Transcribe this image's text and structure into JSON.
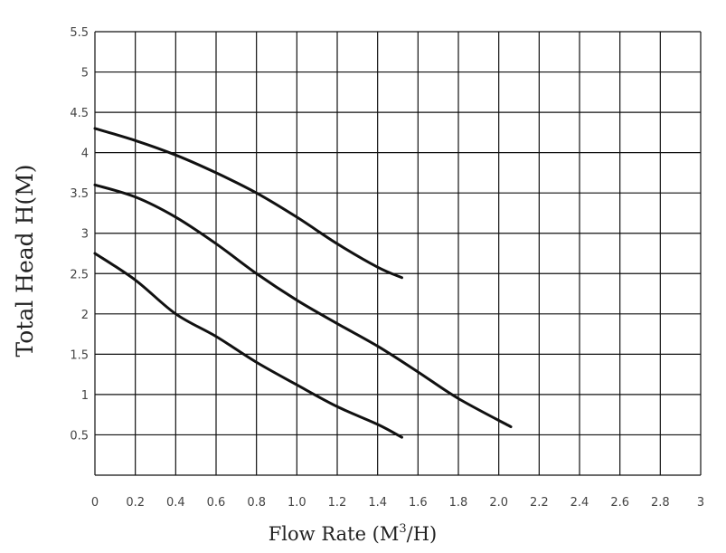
{
  "chart_data": {
    "type": "line",
    "xlabel": "Flow Rate (M",
    "xlabel_sup": "3",
    "xlabel_end": "/H)",
    "ylabel": "Total Head H(M)",
    "xlim": [
      0,
      3
    ],
    "ylim": [
      0,
      5.5
    ],
    "x_ticks": [
      0,
      0.2,
      0.4,
      0.6,
      0.8,
      1.0,
      1.2,
      1.4,
      1.6,
      1.8,
      2.0,
      2.2,
      2.4,
      2.6,
      2.8,
      3
    ],
    "x_tick_labels": [
      "0",
      "0.2",
      "0.4",
      "0.6",
      "0.8",
      "1.0",
      "1.2",
      "1.4",
      "1.6",
      "1.8",
      "2.0",
      "2.2",
      "2.4",
      "2.6",
      "2.8",
      "3"
    ],
    "y_ticks": [
      0.5,
      1,
      1.5,
      2,
      2.5,
      3,
      3.5,
      4,
      4.5,
      5,
      5.5
    ],
    "y_tick_labels": [
      "0.5",
      "1",
      "1.5",
      "2",
      "2.5",
      "3",
      "3.5",
      "4",
      "4.5",
      "5",
      "5.5"
    ],
    "grid": true,
    "legend": false,
    "series": [
      {
        "x": [
          0,
          0.2,
          0.4,
          0.6,
          0.8,
          1.0,
          1.2,
          1.4,
          1.52
        ],
        "y": [
          4.3,
          4.15,
          3.97,
          3.75,
          3.5,
          3.2,
          2.87,
          2.58,
          2.45
        ]
      },
      {
        "x": [
          0,
          0.2,
          0.4,
          0.6,
          0.8,
          1.0,
          1.2,
          1.4,
          1.6,
          1.8,
          2.06
        ],
        "y": [
          3.6,
          3.45,
          3.2,
          2.87,
          2.5,
          2.17,
          1.88,
          1.6,
          1.28,
          0.95,
          0.6
        ]
      },
      {
        "x": [
          0,
          0.2,
          0.4,
          0.6,
          0.8,
          1.0,
          1.2,
          1.4,
          1.52
        ],
        "y": [
          2.75,
          2.42,
          2.0,
          1.72,
          1.4,
          1.12,
          0.85,
          0.63,
          0.47
        ]
      }
    ]
  }
}
